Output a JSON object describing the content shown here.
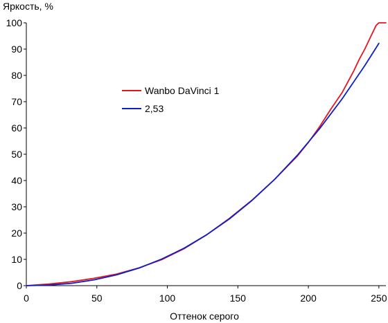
{
  "chart_data": {
    "type": "line",
    "title": "",
    "xlabel": "Оттенок серого",
    "ylabel": "Яркость, %",
    "xlim": [
      0,
      255
    ],
    "ylim": [
      0,
      100
    ],
    "x_ticks": [
      0,
      50,
      100,
      150,
      200,
      250
    ],
    "x_tick_labels": [
      "0",
      "50",
      "100",
      "150",
      "200",
      "250"
    ],
    "y_ticks": [
      0,
      10,
      20,
      30,
      40,
      50,
      60,
      70,
      80,
      90,
      100
    ],
    "y_tick_labels": [
      "0",
      "10",
      "20",
      "30",
      "40",
      "50",
      "60",
      "70",
      "80",
      "90",
      "100"
    ],
    "grid": false,
    "legend_position": "upper-left-inside",
    "series": [
      {
        "name": "Wanbo DaVinci 1",
        "color": "#e8141c",
        "x": [
          0,
          16,
          32,
          48,
          64,
          80,
          96,
          112,
          128,
          144,
          160,
          176,
          192,
          200,
          208,
          216,
          224,
          232,
          236,
          240,
          244,
          248,
          250,
          255
        ],
        "y": [
          0,
          0.6,
          1.5,
          2.8,
          4.4,
          6.8,
          9.9,
          14.1,
          19.4,
          25.6,
          32.5,
          40.4,
          49.2,
          54.5,
          60.5,
          67.2,
          73.5,
          81.5,
          86,
          90,
          94.5,
          99,
          100,
          100
        ]
      },
      {
        "name": "2,53",
        "color": "#0b1ec8",
        "x": [
          0,
          16,
          32,
          48,
          64,
          80,
          96,
          112,
          128,
          144,
          160,
          176,
          192,
          208,
          224,
          240,
          248,
          250
        ],
        "y": [
          0,
          0.2,
          0.9,
          2.2,
          4.1,
          6.7,
          10.1,
          14.3,
          19.4,
          25.4,
          32.4,
          40.4,
          49.5,
          59.7,
          71.1,
          83.7,
          90.5,
          92.2
        ]
      }
    ]
  }
}
